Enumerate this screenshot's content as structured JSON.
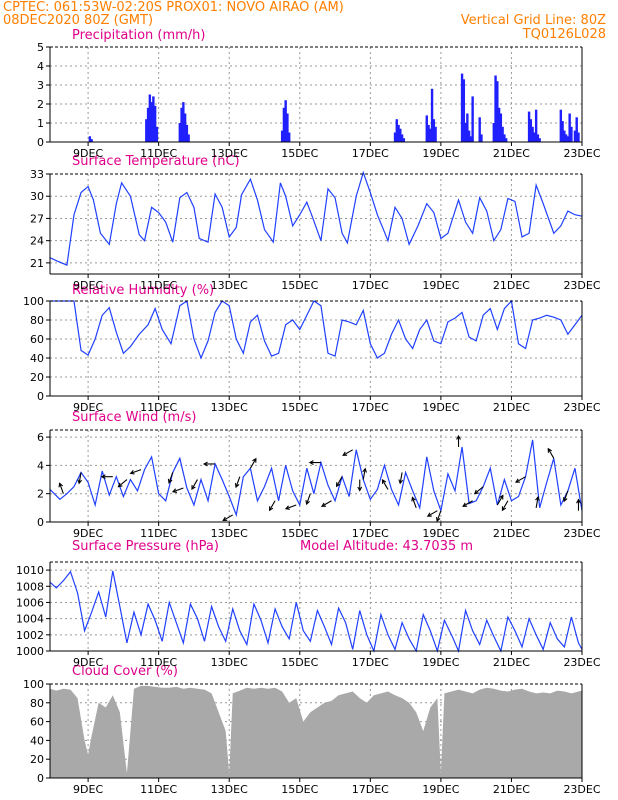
{
  "header": {
    "line1_left": "CPTEC:  061:53W-02:20S  PROX01: NOVO AIRAO (AM)",
    "line2_left": "08DEC2020 80Z (GMT)",
    "line2_right": "Vertical Grid Line: 80Z",
    "line3_right": "TQ0126L028"
  },
  "colors": {
    "header": "#ff7f00",
    "title": "#e0008a",
    "line": "#2040ff",
    "bar": "#2020ff",
    "cloud": "#a9a9a9",
    "grid": "#999999"
  },
  "chart_data": [
    {
      "type": "bar",
      "title": "Precipitation (mm/h)",
      "ylim": [
        0,
        5
      ],
      "yticks": [
        0,
        1,
        2,
        3,
        4,
        5
      ],
      "x_range": [
        7.92,
        23.0
      ],
      "xticks": [
        9,
        11,
        13,
        15,
        17,
        19,
        21,
        23
      ],
      "xtick_labels": [
        "9DEC",
        "11DEC",
        "13DEC",
        "15DEC",
        "17DEC",
        "19DEC",
        "21DEC",
        "23DEC"
      ],
      "grid": true,
      "x": [
        9.05,
        9.1,
        10.65,
        10.7,
        10.75,
        10.8,
        10.85,
        10.9,
        10.95,
        11.6,
        11.65,
        11.7,
        11.75,
        11.8,
        11.85,
        14.5,
        14.55,
        14.6,
        14.65,
        14.7,
        17.7,
        17.75,
        17.8,
        17.85,
        17.9,
        17.95,
        18.6,
        18.65,
        18.7,
        18.75,
        18.8,
        18.85,
        19.6,
        19.65,
        19.7,
        19.75,
        19.8,
        19.85,
        19.9,
        20.1,
        20.15,
        20.5,
        20.55,
        20.6,
        20.65,
        20.7,
        20.75,
        20.8,
        20.85,
        21.5,
        21.55,
        21.6,
        21.65,
        21.7,
        21.75,
        21.8,
        22.4,
        22.45,
        22.5,
        22.55,
        22.6,
        22.65,
        22.7,
        22.8,
        22.85,
        22.9
      ],
      "values": [
        0.3,
        0.15,
        1.2,
        1.8,
        2.5,
        2.1,
        2.4,
        1.9,
        0.8,
        1.0,
        1.8,
        2.1,
        1.5,
        0.9,
        0.4,
        0.6,
        1.8,
        2.2,
        1.5,
        0.5,
        0.5,
        1.2,
        0.9,
        0.7,
        0.4,
        0.2,
        1.4,
        0.9,
        0.7,
        2.8,
        1.2,
        0.8,
        3.6,
        3.3,
        1.0,
        1.5,
        0.6,
        0.3,
        2.4,
        1.3,
        0.4,
        1.0,
        3.5,
        3.2,
        1.8,
        1.5,
        0.8,
        0.4,
        0.2,
        1.6,
        1.2,
        0.8,
        0.5,
        1.7,
        0.4,
        0.2,
        1.7,
        1.1,
        0.6,
        0.4,
        0.3,
        1.5,
        0.8,
        0.6,
        1.3,
        0.5
      ]
    },
    {
      "type": "line",
      "title": "Surface Temperature (nC)",
      "ylim": [
        19.5,
        33
      ],
      "yticks": [
        21,
        24,
        27,
        30,
        33
      ],
      "x_range": [
        7.92,
        23.0
      ],
      "xticks": [
        9,
        11,
        13,
        15,
        17,
        19,
        21,
        23
      ],
      "xtick_labels": [
        "9DEC",
        "11DEC",
        "13DEC",
        "15DEC",
        "17DEC",
        "19DEC",
        "21DEC",
        "23DEC"
      ],
      "grid": true,
      "x": [
        7.92,
        8.1,
        8.4,
        8.6,
        8.8,
        9.0,
        9.15,
        9.35,
        9.6,
        9.8,
        9.95,
        10.2,
        10.45,
        10.6,
        10.8,
        11.0,
        11.2,
        11.4,
        11.6,
        11.8,
        12.0,
        12.15,
        12.4,
        12.6,
        12.8,
        13.0,
        13.2,
        13.35,
        13.6,
        13.8,
        14.0,
        14.25,
        14.45,
        14.6,
        14.8,
        15.0,
        15.2,
        15.35,
        15.6,
        15.8,
        16.0,
        16.2,
        16.35,
        16.6,
        16.8,
        17.0,
        17.2,
        17.5,
        17.7,
        17.9,
        18.1,
        18.35,
        18.6,
        18.8,
        19.0,
        19.2,
        19.5,
        19.7,
        19.9,
        20.1,
        20.3,
        20.5,
        20.7,
        20.9,
        21.1,
        21.3,
        21.5,
        21.7,
        21.9,
        22.2,
        22.4,
        22.6,
        22.8,
        23.0
      ],
      "values": [
        21.7,
        21.3,
        20.7,
        27.5,
        30.5,
        31.3,
        29.5,
        25.0,
        23.5,
        29.0,
        31.8,
        30.0,
        24.8,
        24.0,
        28.5,
        27.8,
        26.5,
        23.8,
        29.8,
        30.5,
        28.5,
        24.3,
        23.8,
        30.3,
        28.5,
        24.5,
        25.8,
        30.2,
        32.3,
        29.5,
        25.5,
        23.8,
        31.8,
        30.0,
        26.0,
        27.5,
        29.2,
        27.3,
        24.0,
        31.0,
        29.8,
        25.0,
        23.7,
        30.0,
        33.2,
        30.5,
        27.5,
        24.0,
        28.5,
        27.0,
        23.5,
        26.0,
        29.0,
        27.8,
        24.3,
        25.0,
        29.5,
        26.5,
        25.0,
        29.8,
        28.0,
        24.0,
        25.5,
        29.7,
        29.3,
        24.5,
        25.0,
        31.5,
        29.0,
        25.0,
        26.0,
        28.0,
        27.5,
        27.3
      ]
    },
    {
      "type": "line",
      "title": "Relative Humidity (%)",
      "ylim": [
        0,
        100
      ],
      "yticks": [
        0,
        20,
        40,
        60,
        80,
        100
      ],
      "x_range": [
        7.92,
        23.0
      ],
      "xticks": [
        9,
        11,
        13,
        15,
        17,
        19,
        21,
        23
      ],
      "xtick_labels": [
        "9DEC",
        "11DEC",
        "13DEC",
        "15DEC",
        "17DEC",
        "19DEC",
        "21DEC",
        "23DEC"
      ],
      "grid": true,
      "x": [
        7.92,
        8.3,
        8.6,
        8.8,
        9.0,
        9.2,
        9.4,
        9.6,
        9.8,
        10.0,
        10.2,
        10.45,
        10.7,
        10.9,
        11.1,
        11.35,
        11.6,
        11.8,
        12.0,
        12.2,
        12.4,
        12.6,
        12.8,
        13.0,
        13.2,
        13.4,
        13.6,
        13.8,
        14.0,
        14.2,
        14.4,
        14.6,
        14.8,
        15.0,
        15.2,
        15.4,
        15.6,
        15.8,
        16.0,
        16.2,
        16.4,
        16.6,
        16.8,
        17.0,
        17.2,
        17.4,
        17.6,
        17.8,
        18.0,
        18.2,
        18.4,
        18.6,
        18.8,
        19.0,
        19.2,
        19.4,
        19.6,
        19.8,
        20.0,
        20.2,
        20.4,
        20.6,
        20.8,
        21.0,
        21.2,
        21.4,
        21.6,
        21.8,
        22.0,
        22.2,
        22.4,
        22.6,
        22.8,
        23.0
      ],
      "values": [
        100,
        100,
        100,
        48,
        43,
        60,
        85,
        93,
        67,
        45,
        52,
        65,
        75,
        92,
        70,
        55,
        95,
        100,
        60,
        40,
        58,
        88,
        100,
        95,
        60,
        45,
        78,
        85,
        58,
        42,
        45,
        75,
        80,
        70,
        85,
        100,
        95,
        45,
        42,
        80,
        78,
        75,
        90,
        55,
        40,
        45,
        65,
        80,
        60,
        50,
        70,
        80,
        58,
        55,
        78,
        82,
        88,
        62,
        58,
        85,
        92,
        70,
        92,
        100,
        55,
        50,
        80,
        82,
        85,
        83,
        80,
        65,
        75,
        85
      ]
    },
    {
      "type": "line",
      "title": "Surface Wind (m/s)",
      "ylim": [
        0,
        6.5
      ],
      "yticks": [
        0,
        2,
        4,
        6
      ],
      "x_range": [
        7.92,
        23.0
      ],
      "xticks": [
        9,
        11,
        13,
        15,
        17,
        19,
        21,
        23
      ],
      "xtick_labels": [
        "9DEC",
        "11DEC",
        "13DEC",
        "15DEC",
        "17DEC",
        "19DEC",
        "21DEC",
        "23DEC"
      ],
      "grid": true,
      "x": [
        7.92,
        8.2,
        8.4,
        8.6,
        8.8,
        9.0,
        9.2,
        9.4,
        9.6,
        9.8,
        10.0,
        10.2,
        10.4,
        10.6,
        10.8,
        11.0,
        11.2,
        11.4,
        11.6,
        11.8,
        12.0,
        12.2,
        12.4,
        12.6,
        12.8,
        13.0,
        13.2,
        13.4,
        13.6,
        13.8,
        14.0,
        14.2,
        14.4,
        14.6,
        14.8,
        15.0,
        15.2,
        15.4,
        15.6,
        15.8,
        16.0,
        16.2,
        16.4,
        16.6,
        16.8,
        17.0,
        17.2,
        17.4,
        17.6,
        17.8,
        18.0,
        18.2,
        18.4,
        18.6,
        18.8,
        19.0,
        19.2,
        19.4,
        19.6,
        19.8,
        20.0,
        20.2,
        20.4,
        20.6,
        20.8,
        21.0,
        21.2,
        21.4,
        21.6,
        21.8,
        22.0,
        22.2,
        22.4,
        22.6,
        22.8,
        23.0
      ],
      "values": [
        2.3,
        1.6,
        2.0,
        2.5,
        3.5,
        2.8,
        1.2,
        3.6,
        1.9,
        3.2,
        1.8,
        3.0,
        2.2,
        3.7,
        4.6,
        2.0,
        1.5,
        3.5,
        4.5,
        2.4,
        1.2,
        3.0,
        1.5,
        4.1,
        3.0,
        1.8,
        0.5,
        3.2,
        3.8,
        1.5,
        2.5,
        3.8,
        1.5,
        4.0,
        2.2,
        1.2,
        3.8,
        2.0,
        4.2,
        2.6,
        1.5,
        3.2,
        1.8,
        5.1,
        3.0,
        1.6,
        2.3,
        4.0,
        2.3,
        1.2,
        3.5,
        2.2,
        1.0,
        4.6,
        2.2,
        0.8,
        3.4,
        2.2,
        5.3,
        1.3,
        1.5,
        2.5,
        3.8,
        1.2,
        3.0,
        1.5,
        1.8,
        3.2,
        5.8,
        1.0,
        2.8,
        4.5,
        1.2,
        2.2,
        3.8,
        0.8
      ],
      "arrow_x": [
        8.3,
        8.8,
        9.7,
        10.1,
        10.5,
        11.4,
        11.7,
        12.1,
        12.6,
        13.1,
        13.3,
        13.6,
        14.3,
        14.9,
        15.3,
        15.6,
        15.9,
        16.2,
        16.5,
        16.7,
        16.8,
        17.5,
        17.9,
        18.3,
        18.9,
        19.0,
        19.5,
        19.9,
        20.2,
        20.6,
        20.9,
        21.4,
        21.7,
        22.2,
        22.6,
        22.9
      ],
      "arrow_dir_deg": [
        110,
        260,
        180,
        220,
        200,
        250,
        200,
        240,
        180,
        210,
        250,
        60,
        240,
        200,
        250,
        180,
        210,
        240,
        210,
        270,
        80,
        120,
        260,
        110,
        210,
        250,
        90,
        210,
        220,
        60,
        240,
        210,
        80,
        120,
        250,
        90
      ]
    },
    {
      "type": "line",
      "title": "Surface Pressure (hPa)",
      "annotation": "Model Altitude: 43.7035 m",
      "ylim": [
        1000,
        1011
      ],
      "yticks": [
        1000,
        1002,
        1004,
        1006,
        1008,
        1010
      ],
      "x_range": [
        7.92,
        23.0
      ],
      "xticks": [
        9,
        11,
        13,
        15,
        17,
        19,
        21,
        23
      ],
      "xtick_labels": [
        "9DEC",
        "11DEC",
        "13DEC",
        "15DEC",
        "17DEC",
        "19DEC",
        "21DEC",
        "23DEC"
      ],
      "grid": true,
      "x": [
        7.92,
        8.1,
        8.3,
        8.5,
        8.7,
        8.9,
        9.1,
        9.3,
        9.5,
        9.7,
        9.9,
        10.1,
        10.3,
        10.5,
        10.7,
        10.9,
        11.1,
        11.3,
        11.5,
        11.7,
        11.9,
        12.1,
        12.3,
        12.5,
        12.7,
        12.9,
        13.1,
        13.3,
        13.5,
        13.7,
        13.9,
        14.1,
        14.3,
        14.5,
        14.7,
        14.9,
        15.1,
        15.3,
        15.5,
        15.7,
        15.9,
        16.1,
        16.3,
        16.5,
        16.7,
        16.9,
        17.1,
        17.3,
        17.5,
        17.7,
        17.9,
        18.1,
        18.3,
        18.5,
        18.7,
        18.9,
        19.1,
        19.3,
        19.5,
        19.7,
        19.9,
        20.1,
        20.3,
        20.5,
        20.7,
        20.9,
        21.1,
        21.3,
        21.5,
        21.7,
        21.9,
        22.1,
        22.3,
        22.5,
        22.7,
        22.9,
        23.0
      ],
      "values": [
        1008.5,
        1007.8,
        1008.7,
        1009.8,
        1007.2,
        1002.5,
        1004.8,
        1007.3,
        1004.2,
        1009.9,
        1005.5,
        1001.0,
        1004.8,
        1002.0,
        1005.8,
        1003.8,
        1001.2,
        1006.0,
        1003.5,
        1001.0,
        1005.8,
        1004.0,
        1001.2,
        1005.5,
        1003.0,
        1001.2,
        1005.2,
        1002.5,
        1000.8,
        1005.8,
        1003.8,
        1001.0,
        1005.2,
        1003.0,
        1001.5,
        1006.0,
        1002.5,
        1001.2,
        1005.0,
        1003.0,
        1000.8,
        1005.3,
        1003.5,
        1000.2,
        1005.0,
        1002.0,
        1000.0,
        1004.5,
        1002.0,
        1000.2,
        1003.5,
        1001.5,
        1000.0,
        1004.5,
        1002.5,
        1000.0,
        1003.8,
        1002.0,
        1000.0,
        1005.0,
        1002.5,
        1000.8,
        1003.8,
        1001.8,
        1000.0,
        1004.2,
        1002.5,
        1000.5,
        1004.0,
        1002.0,
        1000.2,
        1003.5,
        1001.5,
        1000.5,
        1004.2,
        1001.0,
        1000.2
      ]
    },
    {
      "type": "area",
      "title": "Cloud Cover (%)",
      "ylim": [
        0,
        100
      ],
      "yticks": [
        0,
        20,
        40,
        60,
        80,
        100
      ],
      "x_range": [
        7.92,
        23.0
      ],
      "xticks": [
        9,
        11,
        13,
        15,
        17,
        19,
        21,
        23
      ],
      "xtick_labels": [
        "9DEC",
        "11DEC",
        "13DEC",
        "15DEC",
        "17DEC",
        "19DEC",
        "21DEC",
        "23DEC"
      ],
      "grid": true,
      "x": [
        7.92,
        8.1,
        8.3,
        8.5,
        8.7,
        8.9,
        9.0,
        9.1,
        9.3,
        9.5,
        9.7,
        9.9,
        10.1,
        10.3,
        10.5,
        10.7,
        10.9,
        11.1,
        11.3,
        11.5,
        11.7,
        11.9,
        12.1,
        12.3,
        12.5,
        12.7,
        12.9,
        13.0,
        13.1,
        13.3,
        13.5,
        13.7,
        13.9,
        14.1,
        14.3,
        14.5,
        14.7,
        14.9,
        15.1,
        15.3,
        15.5,
        15.7,
        15.9,
        16.1,
        16.3,
        16.5,
        16.7,
        16.9,
        17.1,
        17.3,
        17.5,
        17.7,
        17.9,
        18.1,
        18.3,
        18.5,
        18.7,
        18.9,
        19.0,
        19.1,
        19.3,
        19.5,
        19.7,
        19.9,
        20.1,
        20.3,
        20.5,
        20.7,
        20.9,
        21.1,
        21.3,
        21.5,
        21.7,
        21.9,
        22.1,
        22.3,
        22.5,
        22.7,
        22.9,
        23.0
      ],
      "values": [
        95,
        93,
        95,
        94,
        85,
        40,
        25,
        45,
        80,
        75,
        88,
        70,
        5,
        95,
        98,
        98,
        97,
        96,
        96,
        97,
        95,
        96,
        95,
        94,
        90,
        70,
        50,
        5,
        90,
        93,
        96,
        95,
        96,
        95,
        96,
        92,
        80,
        85,
        60,
        70,
        75,
        80,
        82,
        88,
        90,
        92,
        85,
        80,
        88,
        90,
        92,
        88,
        85,
        80,
        70,
        50,
        75,
        85,
        5,
        90,
        92,
        94,
        92,
        90,
        94,
        96,
        95,
        93,
        92,
        94,
        95,
        92,
        90,
        91,
        90,
        93,
        92,
        90,
        92,
        93
      ]
    }
  ]
}
